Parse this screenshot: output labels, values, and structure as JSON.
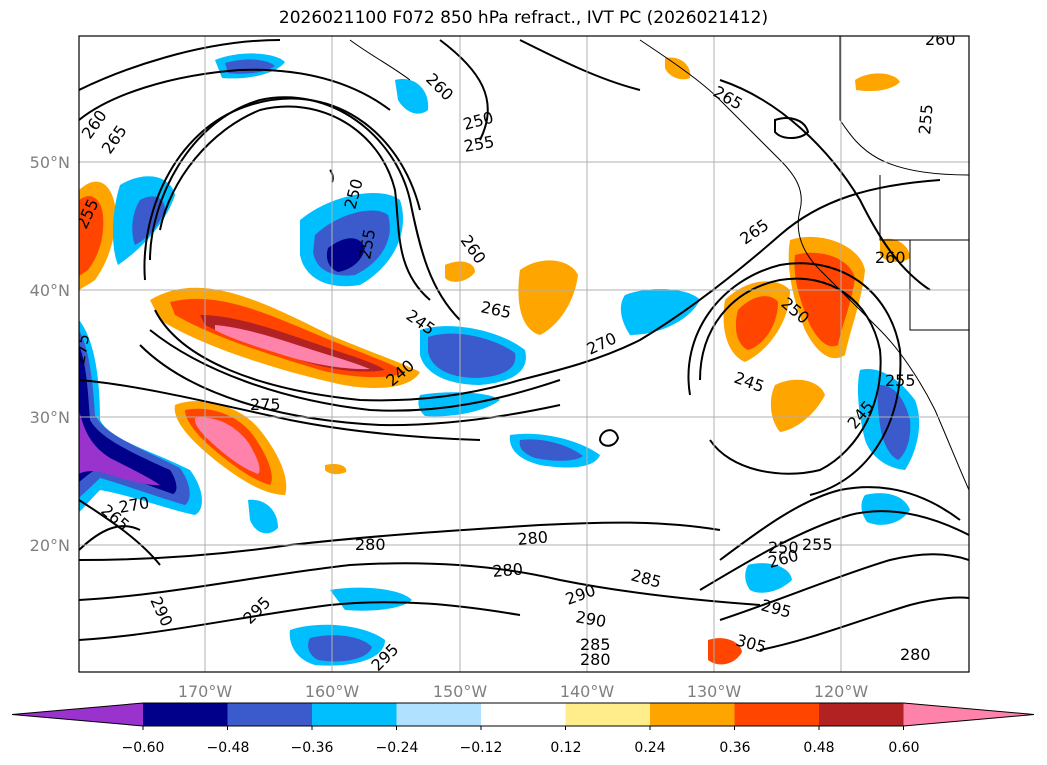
{
  "title": "2026021100 F072 850 hPa refract., IVT PC (2026021412)",
  "lat_labels": [
    "50°N",
    "40°N",
    "30°N",
    "20°N"
  ],
  "lon_labels": [
    "170°W",
    "160°W",
    "150°W",
    "140°W",
    "130°W",
    "120°W"
  ],
  "colorbar": {
    "ticks": [
      "−0.60",
      "−0.48",
      "−0.36",
      "−0.24",
      "−0.12",
      "0.12",
      "0.24",
      "0.36",
      "0.48",
      "0.60"
    ],
    "colors": [
      "#9a32cd",
      "#00008b",
      "#3b5bcc",
      "#00bfff",
      "#b0e2ff",
      "#ffffff",
      "#ffec8b",
      "#ffa500",
      "#ff4500",
      "#b22222",
      "#ff82ab"
    ]
  },
  "contour_labels": [
    "260",
    "265",
    "255",
    "250",
    "255",
    "260",
    "250",
    "255",
    "260",
    "265",
    "245",
    "240",
    "275",
    "270",
    "265",
    "245",
    "250",
    "265",
    "260",
    "255",
    "245",
    "265",
    "270",
    "275",
    "280",
    "280",
    "280",
    "285",
    "290",
    "290",
    "295",
    "295",
    "285",
    "280",
    "295",
    "305",
    "250",
    "255",
    "260",
    "290",
    "280",
    "260",
    "255"
  ]
}
